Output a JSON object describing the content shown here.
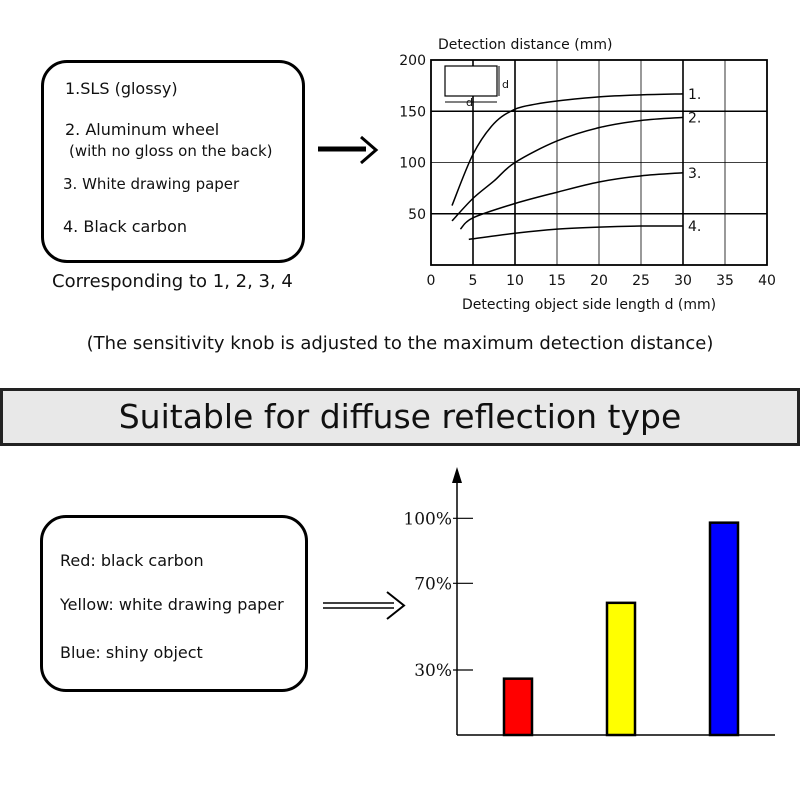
{
  "top_section": {
    "legend": [
      "1.SLS (glossy)",
      "2. Aluminum wheel",
      "(with no gloss on the back)",
      "3. White drawing paper",
      "4. Black carbon"
    ],
    "caption": "Corresponding to 1, 2, 3, 4",
    "note": "(The sensitivity knob is adjusted to the maximum detection distance)"
  },
  "banner": {
    "title": "Suitable for diffuse reflection type"
  },
  "bottom_section": {
    "legend": [
      "Red: black carbon",
      "Yellow: white drawing paper",
      "Blue: shiny object"
    ]
  },
  "inset": {
    "height_label": "d",
    "width_label": "d"
  },
  "chart_data": [
    {
      "type": "line",
      "ylabel": "Detection distance (mm)",
      "xlabel": "Detecting object side length d (mm)",
      "xlim": [
        0,
        40
      ],
      "ylim": [
        0,
        200
      ],
      "xticks": [
        0,
        5,
        10,
        15,
        20,
        25,
        30,
        35,
        40
      ],
      "yticks": [
        50,
        100,
        150,
        200
      ],
      "grid": true,
      "series": [
        {
          "name": "1.",
          "x": [
            2.5,
            5,
            7.5,
            10,
            12.5,
            15,
            20,
            25,
            30
          ],
          "values": [
            58,
            108,
            138,
            152,
            157,
            160,
            164,
            166,
            167
          ]
        },
        {
          "name": "2.",
          "x": [
            2.5,
            5,
            7.5,
            10,
            15,
            20,
            25,
            30
          ],
          "values": [
            43,
            65,
            82,
            100,
            121,
            134,
            141,
            144
          ]
        },
        {
          "name": "3.",
          "x": [
            3.5,
            5,
            10,
            15,
            20,
            25,
            30
          ],
          "values": [
            35,
            46,
            60,
            71,
            81,
            87,
            90
          ]
        },
        {
          "name": "4.",
          "x": [
            4.5,
            10,
            15,
            20,
            25,
            30
          ],
          "values": [
            25,
            31,
            35,
            37,
            38,
            38
          ]
        }
      ]
    },
    {
      "type": "bar",
      "categories": [
        "Red",
        "Yellow",
        "Blue"
      ],
      "values": [
        26,
        61,
        98
      ],
      "colors": [
        "#ff0000",
        "#ffff00",
        "#0000ff"
      ],
      "ylim": [
        0,
        120
      ],
      "yticks": [
        30,
        70,
        100
      ],
      "ytick_labels": [
        "30%",
        "70%",
        "100%"
      ]
    }
  ]
}
